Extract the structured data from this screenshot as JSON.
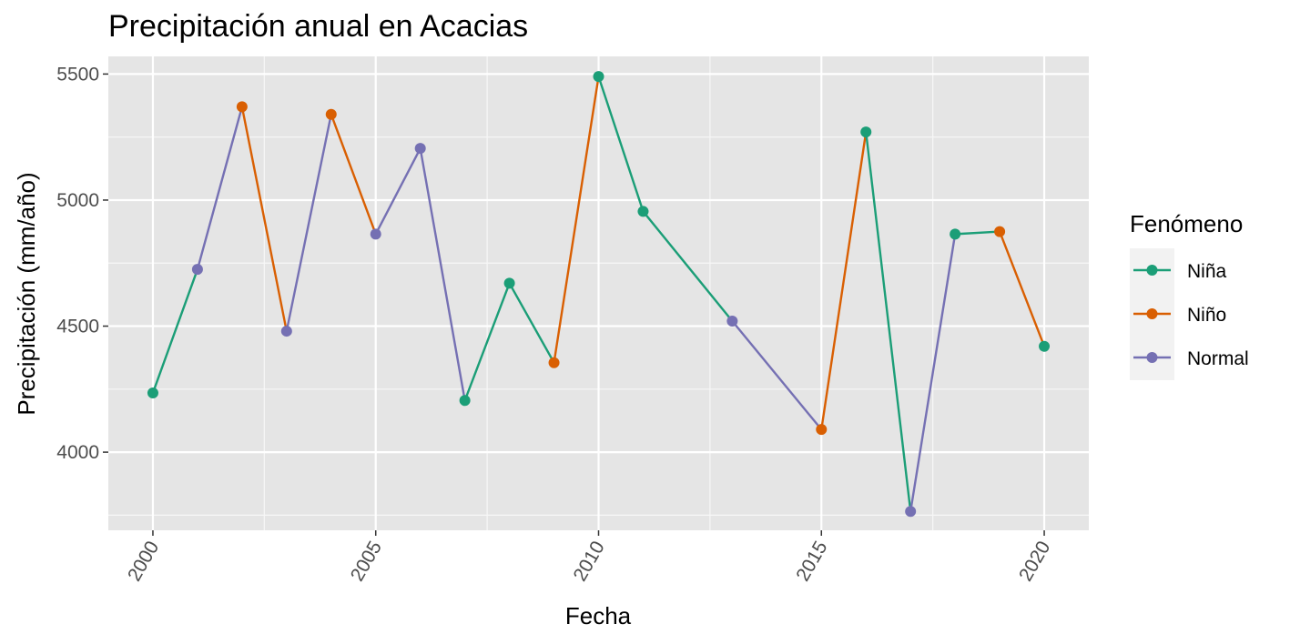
{
  "chart_data": {
    "type": "line",
    "title": "Precipitación anual en Acacias",
    "xlabel": "Fecha",
    "ylabel": "Precipitación (mm/año)",
    "x_ticks": [
      "2000",
      "2005",
      "2010",
      "2015",
      "2020"
    ],
    "y_ticks": [
      "4000",
      "4500",
      "5000",
      "5500"
    ],
    "xlim": [
      1999,
      2021
    ],
    "ylim": [
      3690,
      5570
    ],
    "grid": true,
    "legend": {
      "title": "Fenómeno",
      "position": "right"
    },
    "series": [
      {
        "name": "Niña",
        "color": "#1b9e77"
      },
      {
        "name": "Niño",
        "color": "#d95f02"
      },
      {
        "name": "Normal",
        "color": "#7570b3"
      }
    ],
    "points": [
      {
        "year": 2000,
        "value": 4235,
        "phenomenon": "Niña"
      },
      {
        "year": 2001,
        "value": 4725,
        "phenomenon": "Normal"
      },
      {
        "year": 2002,
        "value": 5370,
        "phenomenon": "Niño"
      },
      {
        "year": 2003,
        "value": 4480,
        "phenomenon": "Normal"
      },
      {
        "year": 2004,
        "value": 5340,
        "phenomenon": "Niño"
      },
      {
        "year": 2005,
        "value": 4865,
        "phenomenon": "Normal"
      },
      {
        "year": 2006,
        "value": 5205,
        "phenomenon": "Normal"
      },
      {
        "year": 2007,
        "value": 4205,
        "phenomenon": "Niña"
      },
      {
        "year": 2008,
        "value": 4670,
        "phenomenon": "Niña"
      },
      {
        "year": 2009,
        "value": 4355,
        "phenomenon": "Niño"
      },
      {
        "year": 2010,
        "value": 5490,
        "phenomenon": "Niña"
      },
      {
        "year": 2011,
        "value": 4955,
        "phenomenon": "Niña"
      },
      {
        "year": 2013,
        "value": 4520,
        "phenomenon": "Normal"
      },
      {
        "year": 2015,
        "value": 4090,
        "phenomenon": "Niño"
      },
      {
        "year": 2016,
        "value": 5270,
        "phenomenon": "Niña"
      },
      {
        "year": 2017,
        "value": 3765,
        "phenomenon": "Normal"
      },
      {
        "year": 2018,
        "value": 4865,
        "phenomenon": "Niña"
      },
      {
        "year": 2019,
        "value": 4875,
        "phenomenon": "Niño"
      },
      {
        "year": 2020,
        "value": 4420,
        "phenomenon": "Niña"
      }
    ]
  }
}
